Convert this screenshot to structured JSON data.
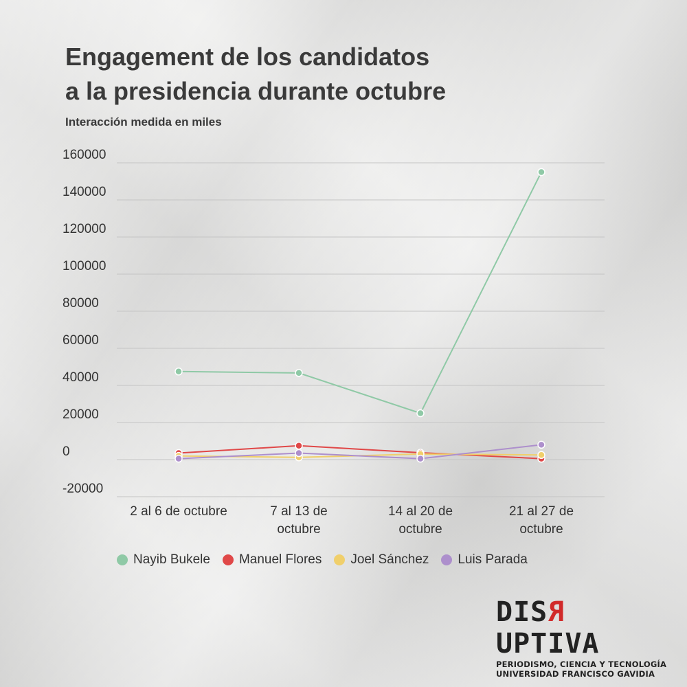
{
  "title_line1": "Engagement de los candidatos",
  "title_line2": "a la presidencia durante octubre",
  "subtitle": "Interacción medida en miles",
  "logo": {
    "word_part1": "DIS",
    "word_flip": "R",
    "word_part2": "UPTIVA",
    "tagline1": "PERIODISMO, CIENCIA Y TECNOLOGÍA",
    "tagline2": "UNIVERSIDAD FRANCISCO GAVIDIA"
  },
  "chart_data": {
    "type": "line",
    "categories": [
      [
        "2 al 6 de octubre"
      ],
      [
        "7 al 13 de",
        "octubre"
      ],
      [
        "14 al 20 de",
        "octubre"
      ],
      [
        "21 al 27 de",
        "octubre"
      ]
    ],
    "ylim": [
      -20000,
      160000
    ],
    "yticks": [
      -20000,
      0,
      20000,
      40000,
      60000,
      80000,
      100000,
      120000,
      140000,
      160000
    ],
    "grid": true,
    "legend_position": "bottom",
    "series": [
      {
        "name": "Nayib Bukele",
        "color": "#8fc9a6",
        "values": [
          47500,
          46700,
          25000,
          155000
        ]
      },
      {
        "name": "Manuel Flores",
        "color": "#e04848",
        "values": [
          3500,
          7500,
          3700,
          500
        ]
      },
      {
        "name": "Joel Sánchez",
        "color": "#f0cf6b",
        "values": [
          2000,
          1200,
          3000,
          2500
        ]
      },
      {
        "name": "Luis Parada",
        "color": "#ad8fcc",
        "values": [
          500,
          3500,
          500,
          8000
        ]
      }
    ]
  }
}
